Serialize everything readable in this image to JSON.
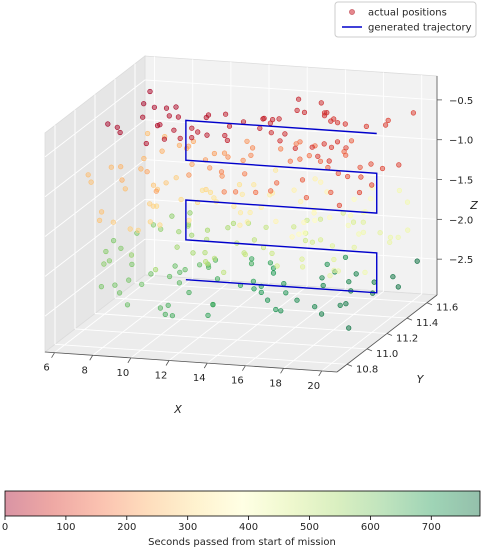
{
  "chart_data": {
    "type": "scatter",
    "projection": "3d",
    "xlabel": "X",
    "ylabel": "Y",
    "zlabel": "Z",
    "x_ticks": [
      6,
      8,
      10,
      12,
      14,
      16,
      18,
      20
    ],
    "y_ticks": [
      10.8,
      11.0,
      11.2,
      11.4,
      11.6
    ],
    "z_ticks": [
      -2.5,
      -2.0,
      -1.5,
      -1.0,
      -0.5
    ],
    "xlim": [
      5.5,
      20.8
    ],
    "ylim": [
      10.7,
      11.7
    ],
    "zlim": [
      -2.95,
      -0.2
    ],
    "grid": true,
    "legend": {
      "placement": "top-right",
      "entries": [
        {
          "label": "actual positions",
          "marker": "circle",
          "color": "#e5878d"
        },
        {
          "label": "generated trajectory",
          "marker": "line",
          "color": "#0000cc"
        }
      ]
    },
    "colorbar": {
      "label": "Seconds passed from start of mission",
      "ticks": [
        0,
        100,
        200,
        300,
        400,
        500,
        600,
        700
      ],
      "range": [
        0,
        780
      ],
      "colormap": "RdYlGn"
    },
    "trajectory": {
      "name": "generated trajectory",
      "color": "#0000cc",
      "points": [
        {
          "x": 10,
          "y": 11.25,
          "z": -2.5
        },
        {
          "x": 20,
          "y": 11.25,
          "z": -2.5
        },
        {
          "x": 20,
          "y": 11.25,
          "z": -2.0
        },
        {
          "x": 10,
          "y": 11.25,
          "z": -2.0
        },
        {
          "x": 10,
          "y": 11.25,
          "z": -1.5
        },
        {
          "x": 20,
          "y": 11.25,
          "z": -1.5
        },
        {
          "x": 20,
          "y": 11.25,
          "z": -1.0
        },
        {
          "x": 10,
          "y": 11.25,
          "z": -1.0
        },
        {
          "x": 10,
          "y": 11.25,
          "z": -0.5
        },
        {
          "x": 20,
          "y": 11.25,
          "z": -0.5
        }
      ]
    },
    "actual_positions": {
      "name": "actual positions",
      "points_per_level": 60,
      "levels": [
        {
          "z": -0.5,
          "x_from": 6.5,
          "x_to": 20.5,
          "t_from": 0,
          "t_to": 90
        },
        {
          "z": -1.0,
          "x_from": 20.5,
          "x_to": 6.5,
          "t_from": 90,
          "t_to": 260
        },
        {
          "z": -1.5,
          "x_from": 6.5,
          "x_to": 20.5,
          "t_from": 260,
          "t_to": 420
        },
        {
          "z": -2.0,
          "x_from": 20.5,
          "x_to": 6.5,
          "t_from": 420,
          "t_to": 600
        },
        {
          "z": -2.5,
          "x_from": 6.5,
          "x_to": 20.5,
          "t_from": 600,
          "t_to": 780
        }
      ],
      "spread": {
        "y": 0.35,
        "z": 0.12
      }
    }
  }
}
